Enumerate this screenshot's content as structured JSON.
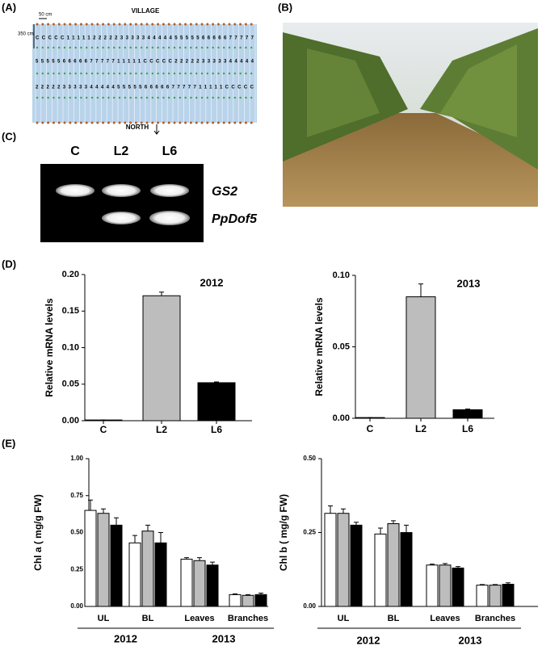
{
  "panel_labels": [
    "(A)",
    "(B)",
    "(C)",
    "(D)",
    "(E)"
  ],
  "field": {
    "top_label": "VILLAGE",
    "bottom_label": "NORTH",
    "width_label": "50 cm",
    "height_label": "350 cm",
    "rows": [
      "CCCCC11111222223333344444555556666677777",
      "55555666667777711111CCCCC222223333344444",
      "22222333334444455555666667777711111CCCCC"
    ]
  },
  "gel": {
    "lanes": [
      "C",
      "L2",
      "L6"
    ],
    "bands": [
      "GS2",
      "PpDof5"
    ]
  },
  "chart_data": [
    {
      "type": "bar",
      "title": "2012",
      "ylabel": "Relative mRNA levels",
      "categories": [
        "C",
        "L2",
        "L6"
      ],
      "values": [
        0.001,
        0.171,
        0.052
      ],
      "errors": [
        0,
        0.005,
        0.001
      ],
      "colors": [
        "#ffffff",
        "#bdbdbd",
        "#000000"
      ],
      "ylim": [
        0,
        0.2
      ],
      "yticks": [
        {
          "value": 0,
          "label": "0.00"
        },
        0.05,
        {
          "value": 0.1,
          "label": "0.10"
        },
        0.15,
        {
          "value": 0.2,
          "label": "0.20"
        }
      ]
    },
    {
      "type": "bar",
      "title": "2013",
      "ylabel": "Relative mRNA levels",
      "categories": [
        "C",
        "L2",
        "L6"
      ],
      "values": [
        0.0005,
        0.085,
        0.006
      ],
      "errors": [
        0,
        0.009,
        0.0005
      ],
      "colors": [
        "#ffffff",
        "#bdbdbd",
        "#000000"
      ],
      "ylim": [
        0,
        0.1
      ],
      "yticks": [
        {
          "value": 0,
          "label": "0.00"
        },
        0.05,
        {
          "value": 0.1,
          "label": "0.10"
        }
      ]
    },
    {
      "type": "grouped_bar",
      "ylabel": "Chl a ( mg/g FW)",
      "categories": [
        "UL",
        "BL",
        "Leaves",
        "Branches"
      ],
      "group_labels": [
        "2012",
        "2013"
      ],
      "series": [
        {
          "color": "#ffffff",
          "values": [
            0.65,
            0.43,
            0.32,
            0.08
          ],
          "errors": [
            0.07,
            0.05,
            0.01,
            0.005
          ]
        },
        {
          "color": "#bdbdbd",
          "values": [
            0.63,
            0.51,
            0.31,
            0.075
          ],
          "errors": [
            0.03,
            0.04,
            0.02,
            0.005
          ]
        },
        {
          "color": "#000000",
          "values": [
            0.55,
            0.43,
            0.28,
            0.08
          ],
          "errors": [
            0.05,
            0.07,
            0.02,
            0.01
          ]
        }
      ],
      "ylim": [
        0,
        1
      ],
      "yticks": [
        {
          "value": 0,
          "label": "0.00"
        },
        0.25,
        {
          "value": 0.5,
          "label": "0.50"
        },
        0.75,
        {
          "value": 1,
          "label": "1.00"
        }
      ]
    },
    {
      "type": "grouped_bar",
      "ylabel": "Chl b ( mg/g FW)",
      "categories": [
        "UL",
        "BL",
        "Leaves",
        "Branches"
      ],
      "group_labels": [
        "2012",
        "2013"
      ],
      "series": [
        {
          "color": "#ffffff",
          "values": [
            0.315,
            0.245,
            0.14,
            0.072
          ],
          "errors": [
            0.025,
            0.02,
            0.003,
            0.002
          ]
        },
        {
          "color": "#bdbdbd",
          "values": [
            0.315,
            0.28,
            0.14,
            0.072
          ],
          "errors": [
            0.015,
            0.01,
            0.005,
            0.002
          ]
        },
        {
          "color": "#000000",
          "values": [
            0.275,
            0.25,
            0.13,
            0.075
          ],
          "errors": [
            0.01,
            0.025,
            0.005,
            0.005
          ]
        }
      ],
      "ylim": [
        0,
        0.5
      ],
      "yticks": [
        {
          "value": 0,
          "label": "0.00"
        },
        0.25,
        {
          "value": 0.5,
          "label": "0.50"
        }
      ]
    }
  ]
}
